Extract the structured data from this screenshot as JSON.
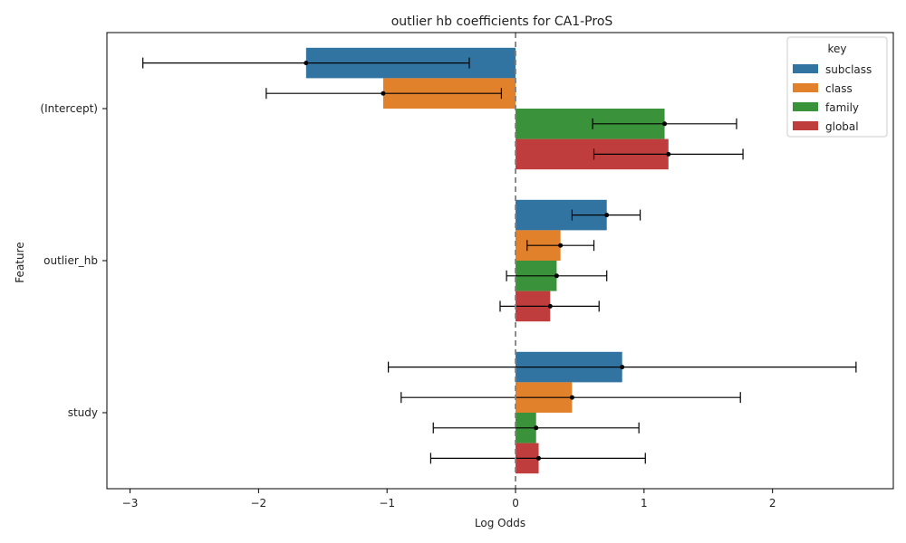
{
  "chart_data": {
    "type": "bar",
    "orientation": "horizontal",
    "title": "outlier hb coefficients for CA1-ProS",
    "xlabel": "Log Odds",
    "ylabel": "Feature",
    "xlim": [
      -3.18,
      2.94
    ],
    "xticks": [
      -3,
      -2,
      -1,
      0,
      1,
      2
    ],
    "xtick_labels": [
      "−3",
      "−2",
      "−1",
      "0",
      "1",
      "2"
    ],
    "categories": [
      "(Intercept)",
      "outlier_hb",
      "study"
    ],
    "reference_line": 0,
    "legend": {
      "title": "key",
      "placement": "top-right"
    },
    "series": [
      {
        "name": "subclass",
        "color": "#3274a1",
        "values": [
          -1.63,
          0.71,
          0.83
        ],
        "ci_low": [
          -2.9,
          0.44,
          -0.99
        ],
        "ci_high": [
          -0.36,
          0.97,
          2.65
        ]
      },
      {
        "name": "class",
        "color": "#e1812c",
        "values": [
          -1.03,
          0.35,
          0.44
        ],
        "ci_low": [
          -1.94,
          0.09,
          -0.89
        ],
        "ci_high": [
          -0.11,
          0.61,
          1.75
        ]
      },
      {
        "name": "family",
        "color": "#3a923a",
        "values": [
          1.16,
          0.32,
          0.16
        ],
        "ci_low": [
          0.6,
          -0.07,
          -0.64
        ],
        "ci_high": [
          1.72,
          0.71,
          0.96
        ]
      },
      {
        "name": "global",
        "color": "#c03d3e",
        "values": [
          1.19,
          0.27,
          0.18
        ],
        "ci_low": [
          0.61,
          -0.12,
          -0.66
        ],
        "ci_high": [
          1.77,
          0.65,
          1.01
        ]
      }
    ]
  }
}
